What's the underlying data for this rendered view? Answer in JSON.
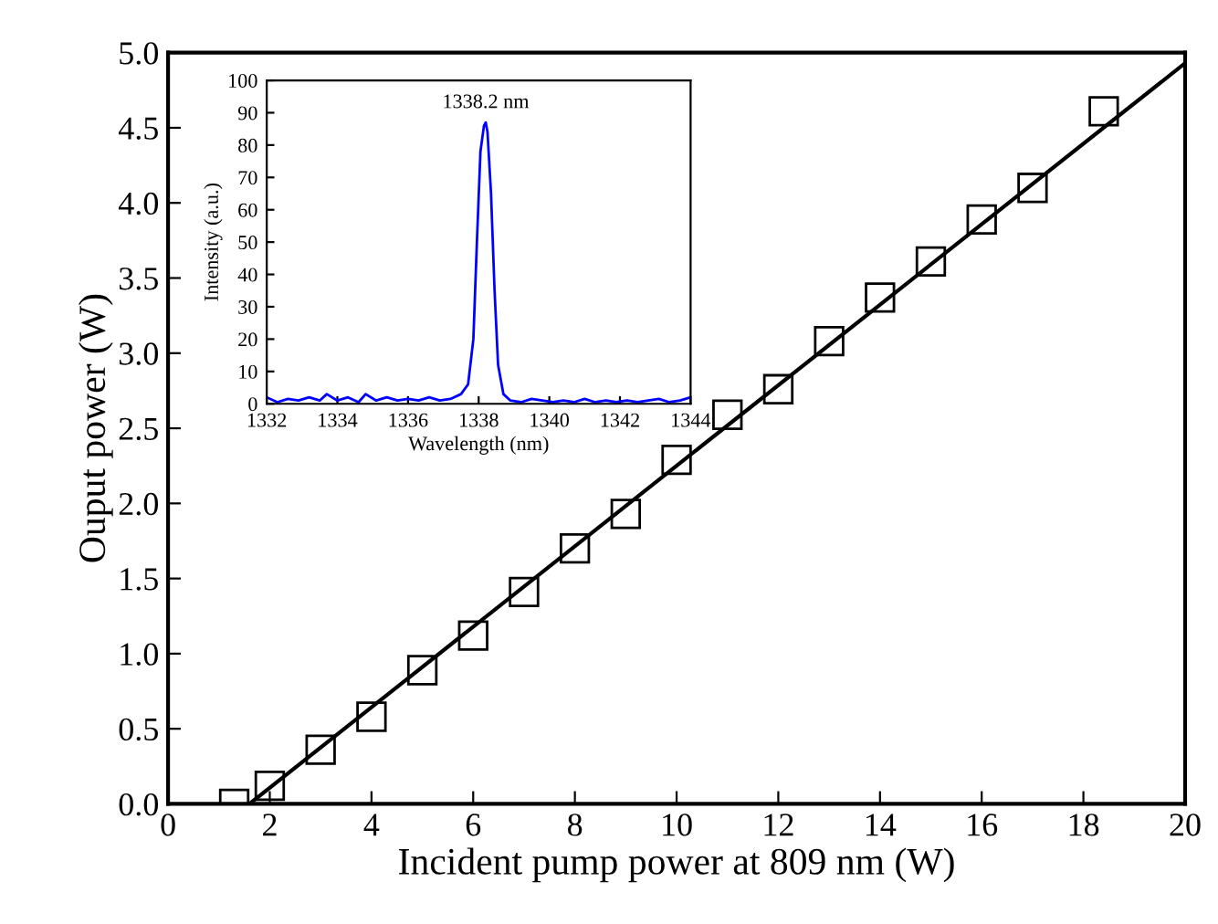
{
  "chart_data": [
    {
      "type": "scatter",
      "xlabel": "Incident pump power at 809 nm (W)",
      "ylabel": "Ouput power (W)",
      "x": [
        1.3,
        2,
        3,
        4,
        5,
        6,
        7,
        8,
        9,
        10,
        11,
        12,
        13,
        14,
        15,
        16,
        17,
        18.4
      ],
      "series": [
        {
          "type": "scatter",
          "color": "#000000",
          "marker": "square",
          "values": [
            0.0,
            0.12,
            0.36,
            0.58,
            0.89,
            1.12,
            1.41,
            1.7,
            1.93,
            2.29,
            2.59,
            2.76,
            3.08,
            3.37,
            3.61,
            3.89,
            4.1,
            4.61
          ]
        },
        {
          "type": "line",
          "color": "#000000",
          "marker": "none",
          "x": [
            1.6,
            20
          ],
          "values": [
            0,
            4.93
          ]
        }
      ],
      "xlim": [
        0,
        20
      ],
      "xticks": [
        0,
        2,
        4,
        6,
        8,
        10,
        12,
        14,
        16,
        18,
        20
      ],
      "ylim": [
        0,
        5.0
      ],
      "yticks": [
        {
          "value": 0,
          "label": "0.0"
        },
        0.5,
        {
          "value": 1,
          "label": "1.0"
        },
        1.5,
        {
          "value": 2,
          "label": "2.0"
        },
        2.5,
        {
          "value": 3,
          "label": "3.0"
        },
        3.5,
        {
          "value": 4,
          "label": "4.0"
        },
        4.5,
        {
          "value": 5,
          "label": "5.0"
        }
      ],
      "grid": false
    },
    {
      "type": "line",
      "xlabel": "Wavelength (nm)",
      "ylabel": "Intensity (a.u.)",
      "x": [
        1332,
        1332.3,
        1332.6,
        1332.9,
        1333.2,
        1333.5,
        1333.7,
        1334.0,
        1334.3,
        1334.6,
        1334.8,
        1335.1,
        1335.4,
        1335.7,
        1336.0,
        1336.3,
        1336.6,
        1336.9,
        1337.2,
        1337.5,
        1337.7,
        1337.85,
        1337.95,
        1338.05,
        1338.15,
        1338.2,
        1338.25,
        1338.35,
        1338.45,
        1338.55,
        1338.7,
        1338.9,
        1339.2,
        1339.5,
        1339.8,
        1340.1,
        1340.4,
        1340.7,
        1341.0,
        1341.3,
        1341.6,
        1341.9,
        1342.2,
        1342.5,
        1342.8,
        1343.1,
        1343.4,
        1343.7,
        1344
      ],
      "series": [
        {
          "color": "#0000ff",
          "values": [
            2,
            0.5,
            1.5,
            1,
            2,
            1,
            3,
            1,
            2,
            0.5,
            3,
            1,
            2,
            1,
            1.5,
            1,
            2,
            1,
            1.5,
            3,
            6,
            20,
            50,
            78,
            86,
            87,
            84,
            65,
            35,
            12,
            3,
            1,
            0.5,
            1.5,
            1,
            0.5,
            1,
            0.5,
            1.5,
            0.5,
            1,
            0.5,
            1,
            0.5,
            1,
            1.5,
            0.5,
            1,
            2
          ]
        }
      ],
      "xlim": [
        1332,
        1344
      ],
      "xticks": [
        1332,
        1334,
        1336,
        1338,
        1340,
        1342,
        1344
      ],
      "ylim": [
        0,
        100
      ],
      "yticks": [
        0,
        10,
        20,
        30,
        40,
        50,
        60,
        70,
        80,
        90,
        100
      ],
      "annotations": [
        {
          "text": "1338.2 nm",
          "x": 1338.2,
          "y": 87
        }
      ],
      "grid": false
    }
  ]
}
